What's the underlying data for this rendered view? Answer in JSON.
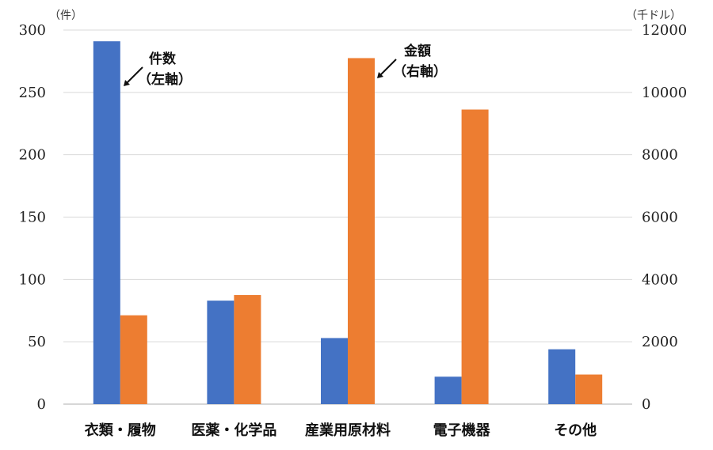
{
  "chart_data": {
    "type": "bar",
    "categories": [
      "衣類・履物",
      "医薬・化学品",
      "産業用原材料",
      "電子機器",
      "その他"
    ],
    "series": [
      {
        "name": "件数",
        "axis": "left",
        "color": "#4472C4",
        "values": [
          291,
          83,
          53,
          22,
          44
        ]
      },
      {
        "name": "金額",
        "axis": "right",
        "color": "#ED7D31",
        "values": [
          2850,
          3500,
          11100,
          9450,
          950
        ]
      }
    ],
    "y_left": {
      "unit": "（件）",
      "ylim": [
        0,
        300
      ],
      "ticks": [
        0,
        50,
        100,
        150,
        200,
        250,
        300
      ]
    },
    "y_right": {
      "unit": "（千ドル）",
      "ylim": [
        0,
        12000
      ],
      "ticks": [
        0,
        2000,
        4000,
        6000,
        8000,
        10000,
        12000
      ]
    },
    "annotations": [
      {
        "line1": "件数",
        "line2": "（左軸）"
      },
      {
        "line1": "金額",
        "line2": "（右軸）"
      }
    ],
    "grid": true,
    "legend": "none"
  }
}
